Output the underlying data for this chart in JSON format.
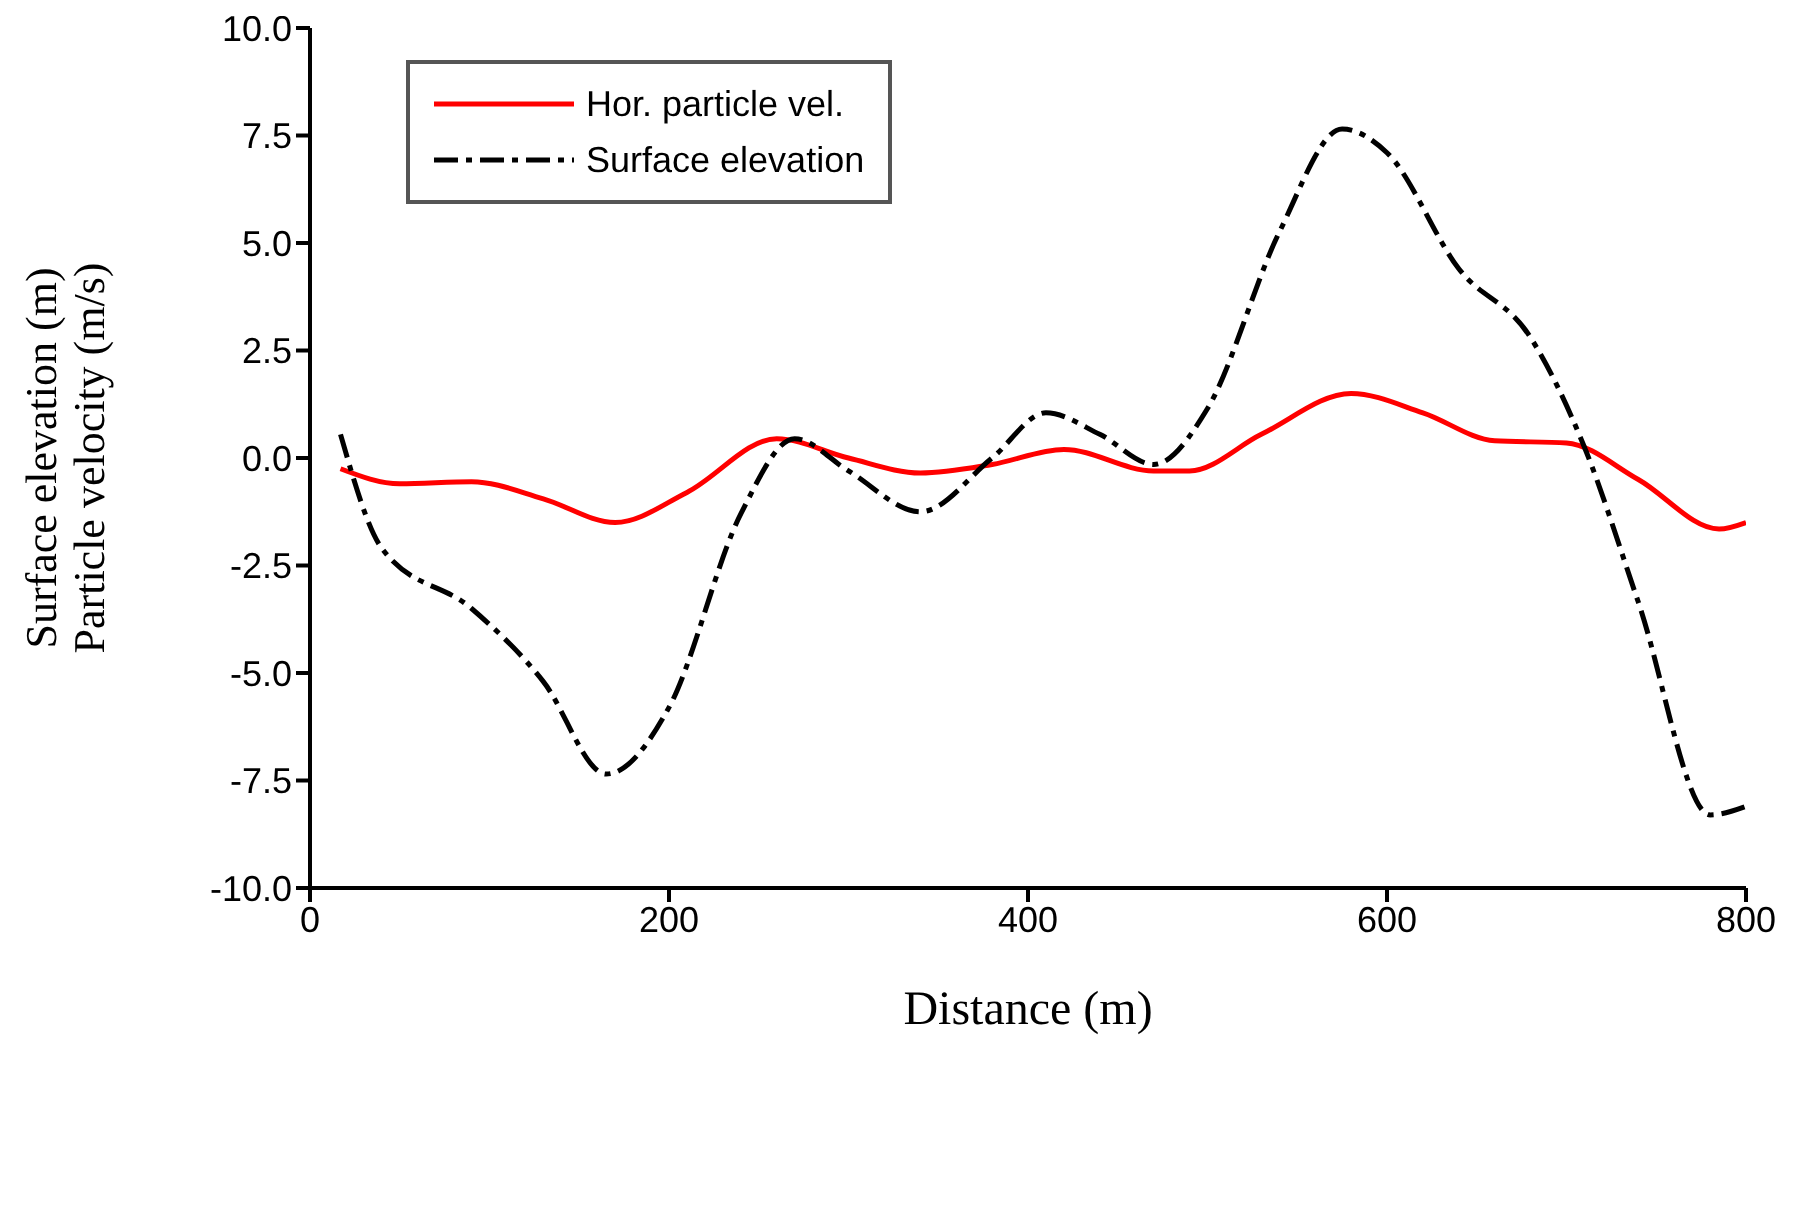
{
  "chart_data": {
    "type": "line",
    "xlabel": "Distance (m)",
    "ylabel": "Surface elevation (m)\nParticle velocity (m/s)",
    "xlim": [
      0,
      800
    ],
    "xticks": [
      0,
      200,
      400,
      600,
      800
    ],
    "ylim": [
      -10,
      10
    ],
    "yticks": [
      {
        "value": -10,
        "label": "-10.0"
      },
      {
        "value": -7.5,
        "label": "-7.5"
      },
      {
        "value": -5,
        "label": "-5.0"
      },
      {
        "value": -2.5,
        "label": "-2.5"
      },
      {
        "value": 0,
        "label": "0.0"
      },
      {
        "value": 2.5,
        "label": "2.5"
      },
      {
        "value": 5,
        "label": "5.0"
      },
      {
        "value": 7.5,
        "label": "7.5"
      },
      {
        "value": 10,
        "label": "10.0"
      }
    ],
    "grid": false,
    "legend": "top left",
    "marker": "none",
    "series": [
      {
        "name": "Hor. particle vel.",
        "color": "#ff0000",
        "line_style": "solid",
        "x": [
          17,
          50,
          90,
          130,
          170,
          210,
          260,
          300,
          340,
          380,
          420,
          470,
          490,
          530,
          580,
          620,
          660,
          700,
          740,
          785,
          800
        ],
        "values": [
          -0.25,
          -0.6,
          -0.55,
          -0.95,
          -1.5,
          -0.8,
          0.45,
          0,
          -0.35,
          -0.15,
          0.2,
          -0.3,
          -0.3,
          0.55,
          1.5,
          1.05,
          0.4,
          0.35,
          -0.5,
          -1.65,
          -1.5
        ]
      },
      {
        "name": "Surface elevation",
        "color": "#000000",
        "line_style": "dashed",
        "x": [
          17,
          40,
          90,
          130,
          165,
          200,
          240,
          270,
          300,
          340,
          380,
          410,
          440,
          470,
          500,
          540,
          575,
          600,
          640,
          680,
          710,
          740,
          780,
          800
        ],
        "values": [
          0.55,
          -2.1,
          -3.5,
          -5.2,
          -7.35,
          -5.8,
          -1.3,
          0.45,
          -0.3,
          -1.25,
          0,
          1.05,
          0.55,
          -0.15,
          1.15,
          5.25,
          7.65,
          7.1,
          4.4,
          2.8,
          0.25,
          -3.35,
          -8.3,
          -8.1
        ]
      }
    ]
  }
}
